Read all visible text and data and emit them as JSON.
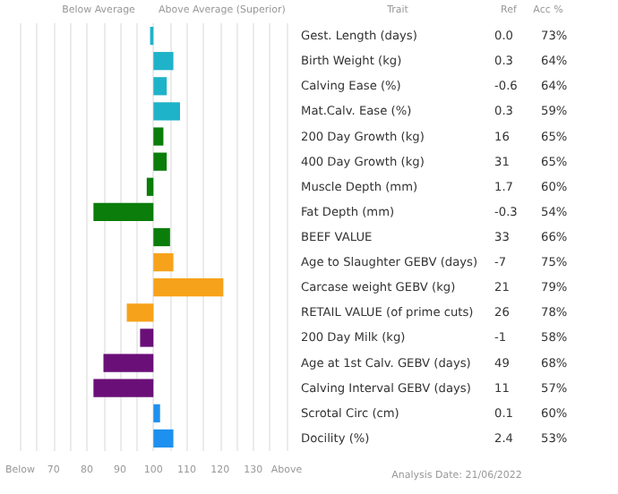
{
  "chart_data": {
    "type": "bar",
    "orientation": "horizontal",
    "categories": [
      "Gest. Length (days)",
      "Birth Weight (kg)",
      "Calving Ease (%)",
      "Mat.Calv. Ease (%)",
      "200 Day Growth (kg)",
      "400 Day Growth (kg)",
      "Muscle Depth (mm)",
      "Fat Depth (mm)",
      "BEEF VALUE",
      "Age to Slaughter GEBV (days)",
      "Carcase weight GEBV (kg)",
      "RETAIL VALUE (of prime cuts)",
      "200 Day Milk (kg)",
      "Age at 1st Calv. GEBV (days)",
      "Calving Interval GEBV (days)",
      "Scrotal Circ (cm)",
      "Docility (%)"
    ],
    "base": [
      100,
      100,
      100,
      100,
      100,
      100,
      100,
      100,
      100,
      100,
      100,
      100,
      100,
      100,
      100,
      100,
      100
    ],
    "values": [
      -1,
      6,
      4,
      8,
      3,
      4,
      -2,
      -18,
      5,
      6,
      21,
      -8,
      -4,
      -15,
      -18,
      2,
      6
    ],
    "colors": [
      "#1fb3c9",
      "#1fb3c9",
      "#1fb3c9",
      "#1fb3c9",
      "#0a7d0a",
      "#0a7d0a",
      "#0a7d0a",
      "#0a7d0a",
      "#0a7d0a",
      "#f7a21b",
      "#f7a21b",
      "#f7a21b",
      "#6a0f78",
      "#6a0f78",
      "#6a0f78",
      "#1e90ef",
      "#1e90ef"
    ],
    "xlim": [
      60,
      140
    ],
    "xticks": [
      {
        "value": 60,
        "label": "Below"
      },
      {
        "value": 65,
        "label": null
      },
      70,
      {
        "value": 75,
        "label": null
      },
      80,
      {
        "value": 85,
        "label": null
      },
      90,
      {
        "value": 95,
        "label": null
      },
      100,
      {
        "value": 105,
        "label": null
      },
      110,
      {
        "value": 115,
        "label": null
      },
      120,
      {
        "value": 125,
        "label": null
      },
      130,
      {
        "value": 135,
        "label": null
      },
      {
        "value": 140,
        "label": "Above"
      }
    ],
    "grid": "x",
    "annotations": [
      "Below Average",
      "Above Average (Superior)",
      "Trait",
      "Ref",
      "Acc %",
      "Analysis Date: 21/06/2022",
      "0.0",
      "0.3",
      "-0.6",
      "0.3",
      "16",
      "31",
      "1.7",
      "-0.3",
      "33",
      "-7",
      "21",
      "26",
      "-1",
      "49",
      "11",
      "0.1",
      "2.4",
      "73%",
      "64%",
      "64%",
      "59%",
      "65%",
      "65%",
      "60%",
      "54%",
      "66%",
      "75%",
      "79%",
      "78%",
      "58%",
      "68%",
      "57%",
      "60%",
      "53%"
    ]
  }
}
